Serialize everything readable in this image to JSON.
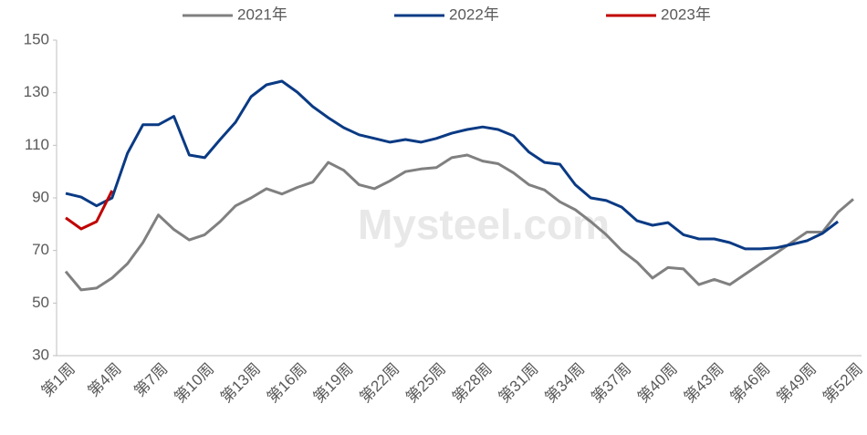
{
  "chart_data": {
    "type": "line",
    "watermark": "Mysteel.com",
    "categories": [
      "第1周",
      null,
      null,
      "第4周",
      null,
      null,
      "第7周",
      null,
      null,
      "第10周",
      null,
      null,
      "第13周",
      null,
      null,
      "第16周",
      null,
      null,
      "第19周",
      null,
      null,
      "第22周",
      null,
      null,
      "第25周",
      null,
      null,
      "第28周",
      null,
      null,
      "第31周",
      null,
      null,
      "第34周",
      null,
      null,
      "第37周",
      null,
      null,
      "第40周",
      null,
      null,
      "第43周",
      null,
      null,
      "第46周",
      null,
      null,
      "第49周",
      null,
      null,
      "第52周"
    ],
    "series": [
      {
        "name": "2021年",
        "color": "#808080",
        "values": [
          62,
          55,
          55.7,
          59.5,
          65,
          73,
          83.5,
          78,
          74,
          76,
          81,
          87,
          90,
          93.5,
          91.5,
          94,
          96,
          103.5,
          100.5,
          95,
          93.5,
          96.5,
          100,
          101,
          101.5,
          105.3,
          106.3,
          104,
          103,
          99.5,
          95,
          93,
          88.5,
          85.5,
          81,
          76,
          70,
          65.5,
          59.5,
          63.5,
          63,
          57,
          59,
          57,
          61,
          65,
          69,
          73,
          77,
          77,
          84.5,
          89.5
        ]
      },
      {
        "name": "2022年",
        "color": "#0a3a84",
        "values": [
          91.7,
          90.3,
          87,
          90,
          107,
          117.8,
          117.8,
          121,
          106.3,
          105.3,
          112.2,
          118.8,
          128.5,
          133,
          134.4,
          130.2,
          124.7,
          120.5,
          116.7,
          114,
          112.6,
          111.2,
          112.2,
          111.2,
          112.6,
          114.6,
          116,
          117,
          116,
          113.6,
          107.4,
          103.5,
          102.8,
          95,
          90,
          89,
          86.5,
          81.3,
          79.6,
          80.6,
          76,
          74.4,
          74.4,
          73,
          70.6,
          70.6,
          71,
          72.3,
          73.7,
          76.5,
          81,
          null
        ]
      },
      {
        "name": "2023年",
        "color": "#c00000",
        "values": [
          82.4,
          78.2,
          81,
          92.8,
          null,
          null,
          null,
          null,
          null,
          null,
          null,
          null,
          null,
          null,
          null,
          null,
          null,
          null,
          null,
          null,
          null,
          null,
          null,
          null,
          null,
          null,
          null,
          null,
          null,
          null,
          null,
          null,
          null,
          null,
          null,
          null,
          null,
          null,
          null,
          null,
          null,
          null,
          null,
          null,
          null,
          null,
          null,
          null,
          null,
          null,
          null,
          null
        ]
      }
    ],
    "ylim": [
      30,
      150
    ],
    "yticks": [
      30,
      50,
      70,
      90,
      110,
      130,
      150
    ],
    "legend": "top"
  }
}
